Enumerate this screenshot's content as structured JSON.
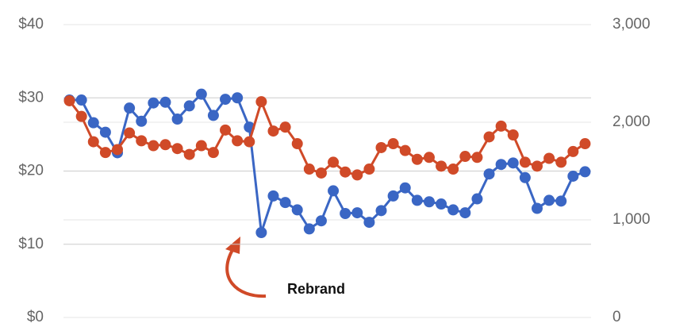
{
  "chart_data": {
    "type": "line",
    "annotation": "Rebrand",
    "categories": [
      null,
      null,
      null,
      null,
      null,
      null,
      null,
      null,
      null,
      null,
      null,
      null,
      null,
      null,
      null,
      null,
      null,
      null,
      null,
      null,
      null,
      null,
      null,
      null,
      null,
      null,
      null,
      null,
      null,
      null,
      null,
      null,
      null,
      null,
      null,
      null,
      null,
      null,
      null,
      null,
      null,
      null,
      null,
      null
    ],
    "series": [
      {
        "color": "#3a66c4",
        "values": [
          29.7,
          29.7,
          26.6,
          25.3,
          22.5,
          28.6,
          26.8,
          29.3,
          29.4,
          27.1,
          28.9,
          30.5,
          27.6,
          29.8,
          30.0,
          26.0,
          11.6,
          16.6,
          15.7,
          14.7,
          12.1,
          13.2,
          17.3,
          14.2,
          14.3,
          13.0,
          14.6,
          16.6,
          17.7,
          16.0,
          15.8,
          15.5,
          14.7,
          14.3,
          16.2,
          19.6,
          20.9,
          21.1,
          19.1,
          14.9,
          16.0,
          15.9,
          19.3,
          19.9
        ]
      },
      {
        "color": "#d04a28",
        "axis": "y2",
        "values": [
          2220,
          2060,
          1800,
          1690,
          1720,
          1890,
          1810,
          1760,
          1770,
          1730,
          1670,
          1760,
          1690,
          1920,
          1810,
          1800,
          2210,
          1910,
          1950,
          1780,
          1520,
          1480,
          1590,
          1490,
          1460,
          1520,
          1740,
          1780,
          1710,
          1620,
          1640,
          1550,
          1520,
          1650,
          1640,
          1850,
          1960,
          1870,
          1590,
          1550,
          1630,
          1590,
          1700,
          1780
        ]
      }
    ],
    "ylim": [
      0,
      40
    ],
    "yticks": [
      {
        "value": 0,
        "label": "$0"
      },
      {
        "value": 10,
        "label": "$10"
      },
      {
        "value": 20,
        "label": "$20"
      },
      {
        "value": 30,
        "label": "$30"
      },
      {
        "value": 40,
        "label": "$40"
      }
    ],
    "y2lim": [
      0,
      3000
    ],
    "y2ticks": [
      0,
      {
        "value": 1000,
        "label": "1,000"
      },
      {
        "value": 2000,
        "label": "2,000"
      },
      {
        "value": 3000,
        "label": "3,000"
      }
    ],
    "grid": true
  }
}
